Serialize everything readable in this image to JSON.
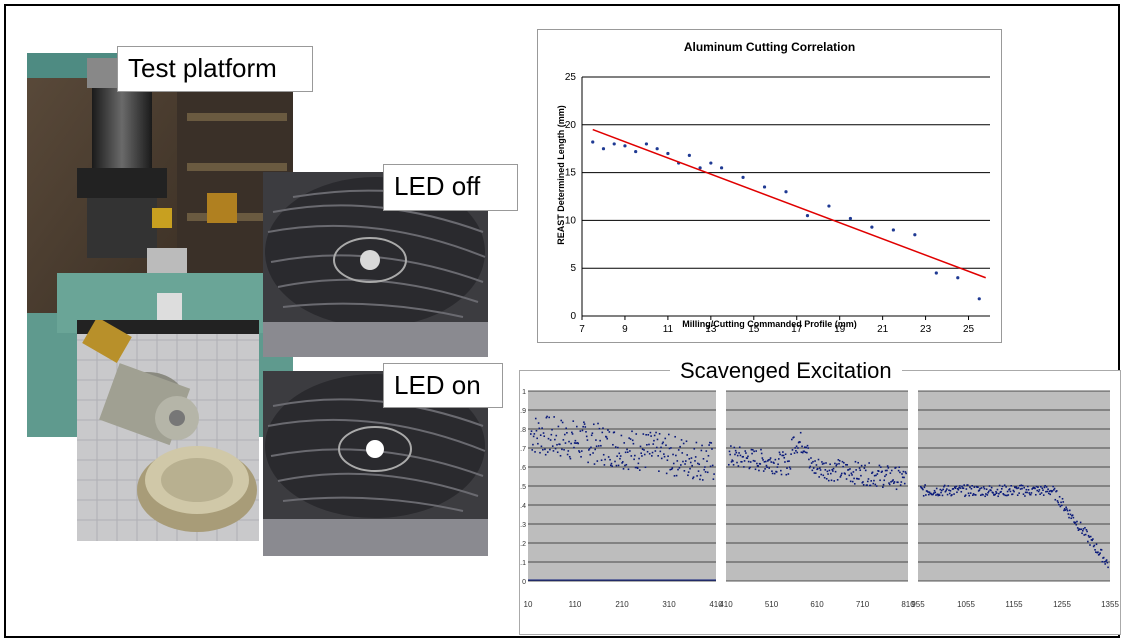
{
  "labels": {
    "test_platform": "Test platform",
    "led_off": "LED off",
    "led_on": "LED on"
  },
  "colors": {
    "fit_line": "#e00000",
    "points": "#1f3a93",
    "scav_points": "#0a1a7a",
    "scav_bg": "#bdbdbd"
  },
  "chart_data": [
    {
      "type": "scatter",
      "title": "Aluminum Cutting Correlation",
      "xlabel": "Milling/Cutting Commanded Profile (mm)",
      "ylabel": "REAST Determined Length (mm)",
      "xlim": [
        7,
        26
      ],
      "ylim": [
        0,
        25
      ],
      "xticks": [
        "7",
        "9",
        "11",
        "13",
        "15",
        "17",
        "19",
        "21",
        "23",
        "25"
      ],
      "yticks": [
        "0",
        "5",
        "10",
        "15",
        "20",
        "25"
      ],
      "grid": true,
      "x": [
        7.5,
        8,
        8.5,
        9,
        9.5,
        10,
        10.5,
        11,
        11.5,
        12,
        12.5,
        13,
        13.5,
        14.5,
        15.5,
        16.5,
        17.5,
        18.5,
        19.5,
        20.5,
        21.5,
        22.5,
        23.5,
        24.5,
        25.5
      ],
      "y": [
        18.2,
        17.5,
        18,
        17.8,
        17.2,
        18,
        17.5,
        17,
        16,
        16.8,
        15.5,
        16,
        15.5,
        14.5,
        13.5,
        13,
        10.5,
        11.5,
        10.2,
        9.3,
        9,
        8.5,
        4.5,
        4,
        1.8
      ],
      "fit_line": {
        "x": [
          7.5,
          25.8
        ],
        "y": [
          19.5,
          4
        ]
      }
    },
    {
      "type": "scatter",
      "title": "Scavenged Excitation",
      "ylim": [
        0,
        1
      ],
      "yticks": [
        "0",
        "0.1",
        "0.2",
        "0.3",
        "0.4",
        "0.5",
        "0.6",
        "0.7",
        "0.8",
        "0.9",
        "1"
      ],
      "panels": [
        {
          "xticks": [
            "10",
            "110",
            "210",
            "310",
            "410"
          ]
        },
        {
          "xticks": [
            "410",
            "510",
            "610",
            "710",
            "810"
          ]
        },
        {
          "xticks": [
            "955",
            "1055",
            "1155",
            "1255",
            "1355"
          ]
        }
      ]
    }
  ]
}
